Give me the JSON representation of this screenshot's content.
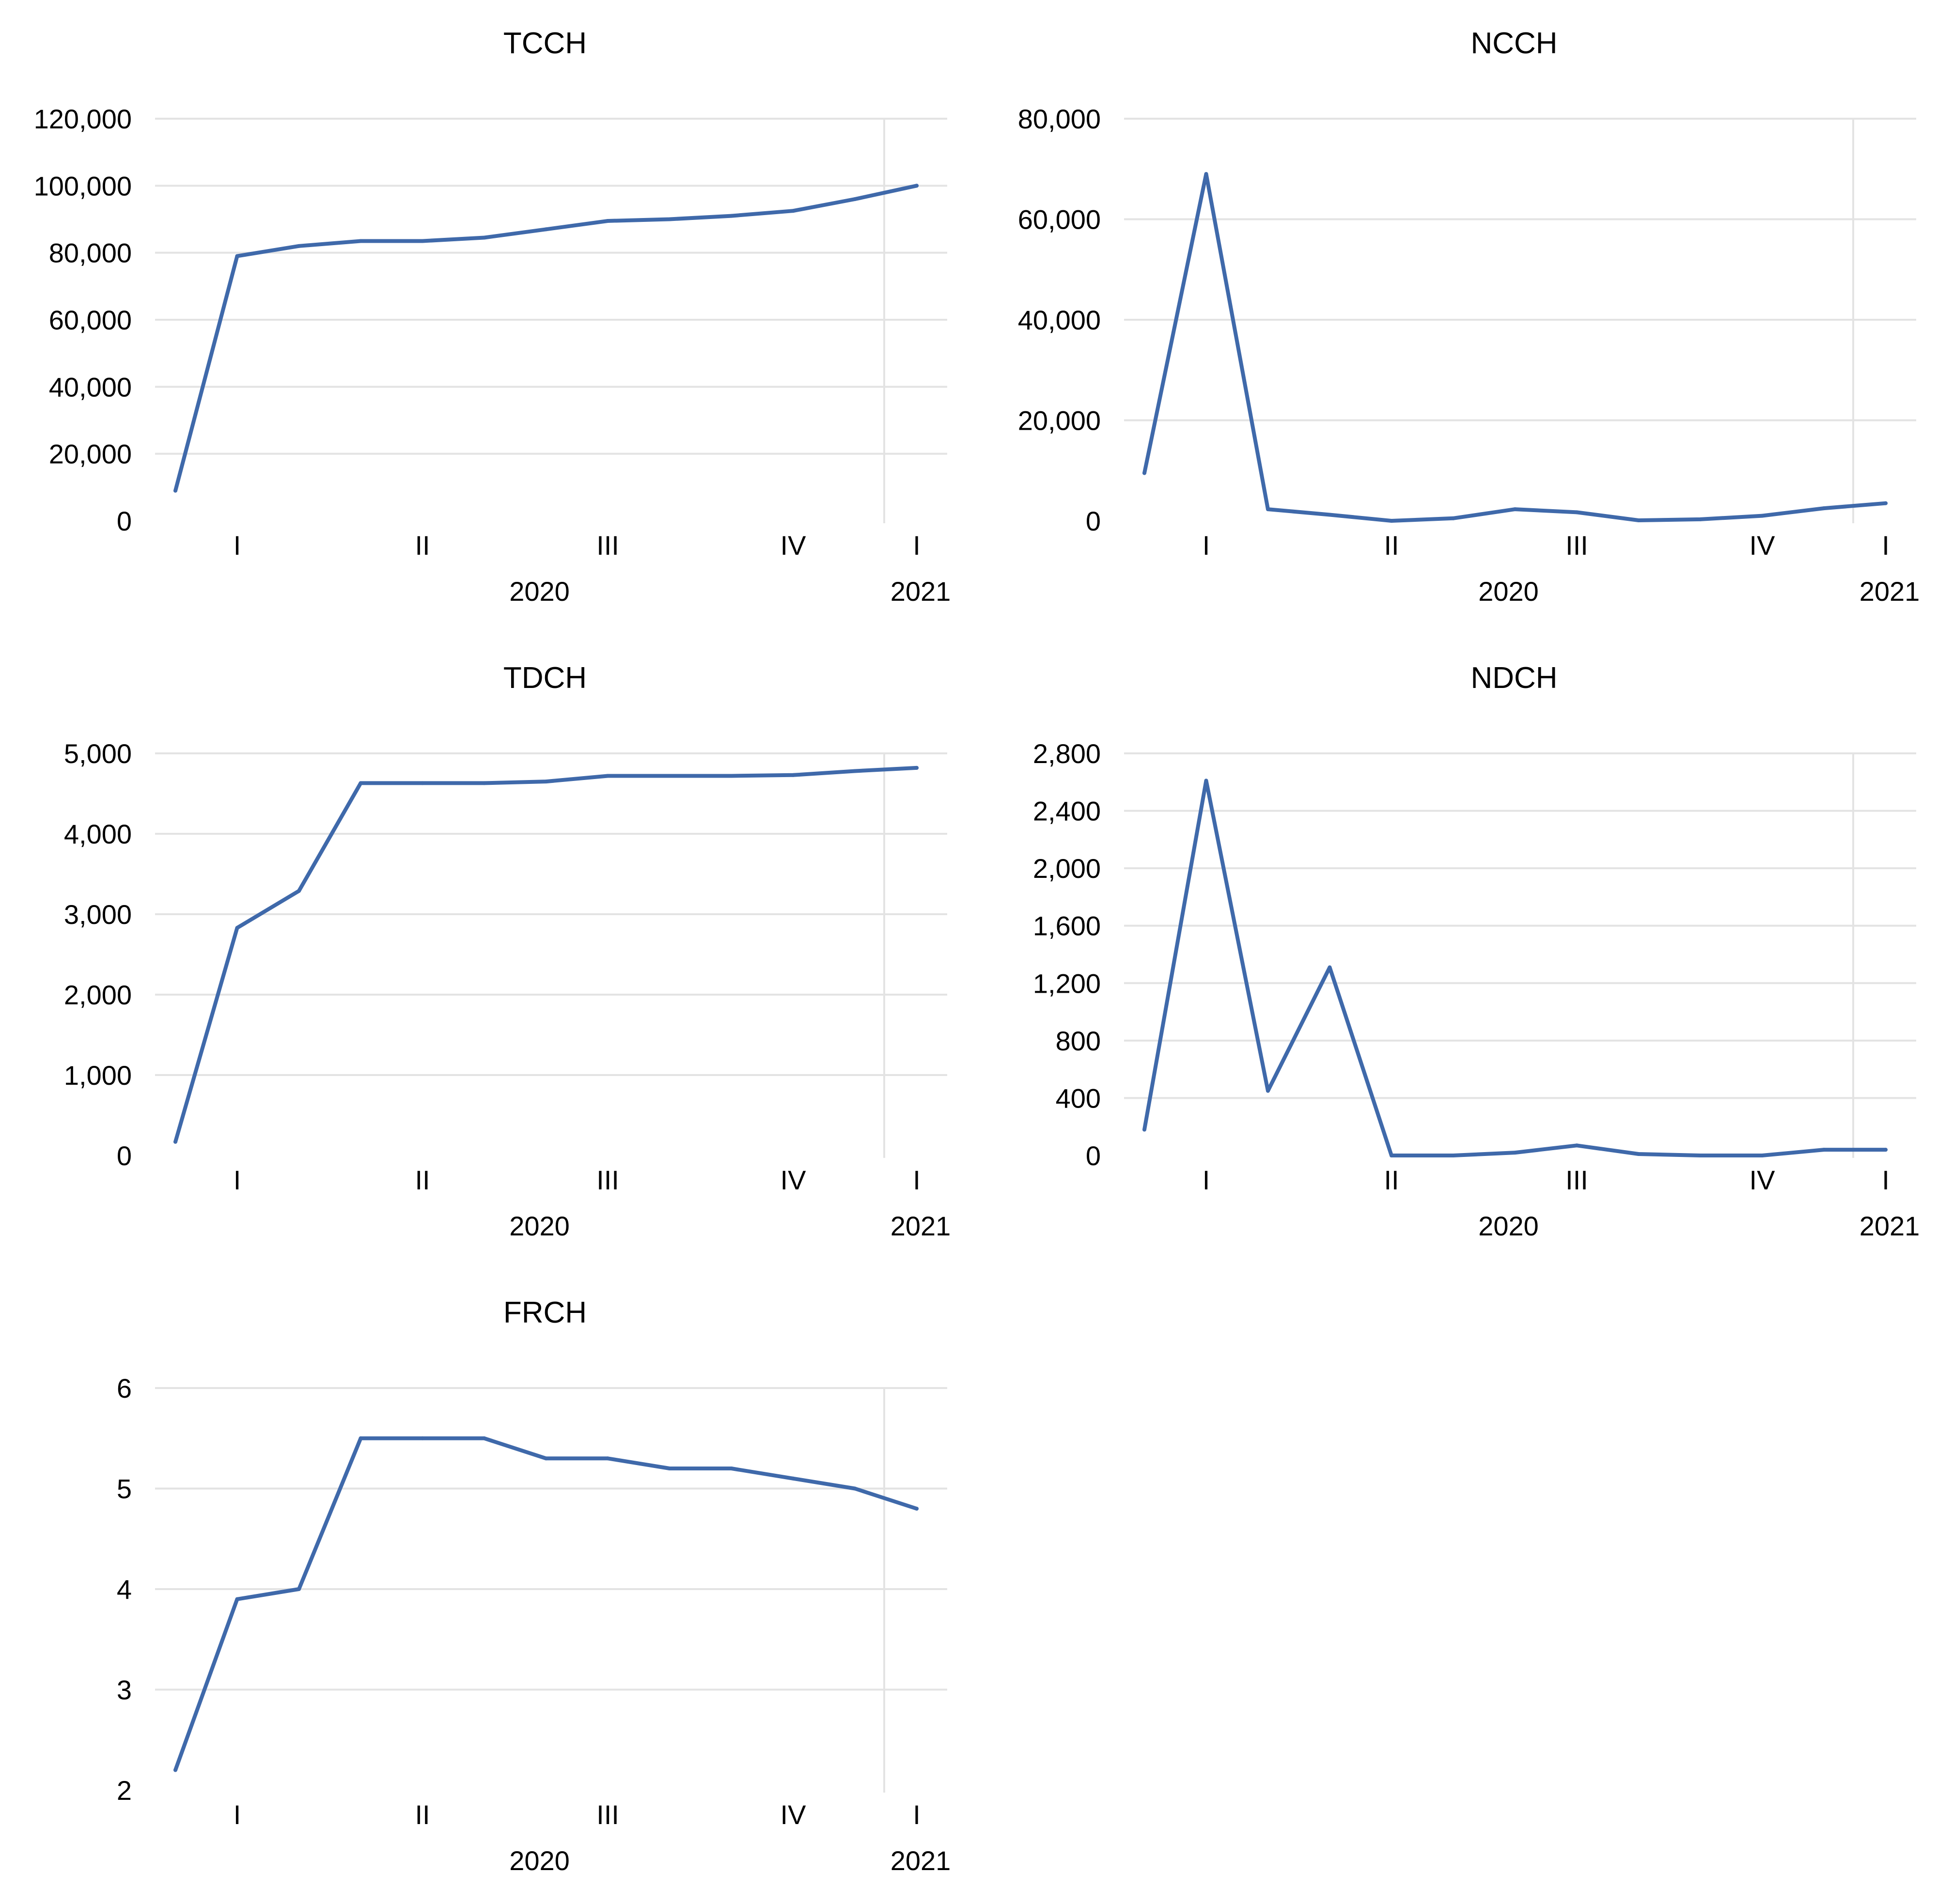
{
  "chart_data": [
    {
      "type": "line",
      "title": "TCCH",
      "ylim": [
        0,
        120000
      ],
      "yticks": [
        0,
        20000,
        40000,
        60000,
        80000,
        100000,
        120000
      ],
      "ytick_labels": [
        "0",
        "20,000",
        "40,000",
        "60,000",
        "80,000",
        "100,000",
        "120,000"
      ],
      "x_quarter_labels": [
        "I",
        "II",
        "III",
        "IV",
        "I"
      ],
      "x_year_labels": [
        "2020",
        "2021"
      ],
      "grid": true,
      "values": [
        9000,
        79000,
        82000,
        83500,
        83500,
        84500,
        87000,
        89500,
        90000,
        91000,
        92500,
        96000,
        100000
      ]
    },
    {
      "type": "line",
      "title": "NCCH",
      "ylim": [
        0,
        80000
      ],
      "yticks": [
        0,
        20000,
        40000,
        60000,
        80000
      ],
      "ytick_labels": [
        "0",
        "20,000",
        "40,000",
        "60,000",
        "80,000"
      ],
      "x_quarter_labels": [
        "I",
        "II",
        "III",
        "IV",
        "I"
      ],
      "x_year_labels": [
        "2020",
        "2021"
      ],
      "grid": true,
      "values": [
        9500,
        69000,
        2300,
        1200,
        0,
        500,
        2300,
        1700,
        100,
        300,
        1000,
        2500,
        3500
      ]
    },
    {
      "type": "line",
      "title": "TDCH",
      "ylim": [
        0,
        5000
      ],
      "yticks": [
        0,
        1000,
        2000,
        3000,
        4000,
        5000
      ],
      "ytick_labels": [
        "0",
        "1,000",
        "2,000",
        "3,000",
        "4,000",
        "5,000"
      ],
      "x_quarter_labels": [
        "I",
        "II",
        "III",
        "IV",
        "I"
      ],
      "x_year_labels": [
        "2020",
        "2021"
      ],
      "grid": true,
      "values": [
        170,
        2830,
        3290,
        4630,
        4630,
        4630,
        4650,
        4720,
        4720,
        4720,
        4730,
        4780,
        4820
      ]
    },
    {
      "type": "line",
      "title": "NDCH",
      "ylim": [
        0,
        2800
      ],
      "yticks": [
        0,
        400,
        800,
        1200,
        1600,
        2000,
        2400,
        2800
      ],
      "ytick_labels": [
        "0",
        "400",
        "800",
        "1,200",
        "1,600",
        "2,000",
        "2,400",
        "2,800"
      ],
      "x_quarter_labels": [
        "I",
        "II",
        "III",
        "IV",
        "I"
      ],
      "x_year_labels": [
        "2020",
        "2021"
      ],
      "grid": true,
      "values": [
        180,
        2610,
        450,
        1310,
        0,
        0,
        20,
        70,
        10,
        0,
        0,
        40,
        40
      ]
    },
    {
      "type": "line",
      "title": "FRCH",
      "ylim": [
        2,
        6
      ],
      "yticks": [
        2,
        3,
        4,
        5,
        6
      ],
      "ytick_labels": [
        "2",
        "3",
        "4",
        "5",
        "6"
      ],
      "x_quarter_labels": [
        "I",
        "II",
        "III",
        "IV",
        "I"
      ],
      "x_year_labels": [
        "2020",
        "2021"
      ],
      "grid": true,
      "values": [
        2.2,
        3.9,
        4.0,
        5.5,
        5.5,
        5.5,
        5.3,
        5.3,
        5.2,
        5.2,
        5.1,
        5.0,
        4.8
      ]
    }
  ]
}
